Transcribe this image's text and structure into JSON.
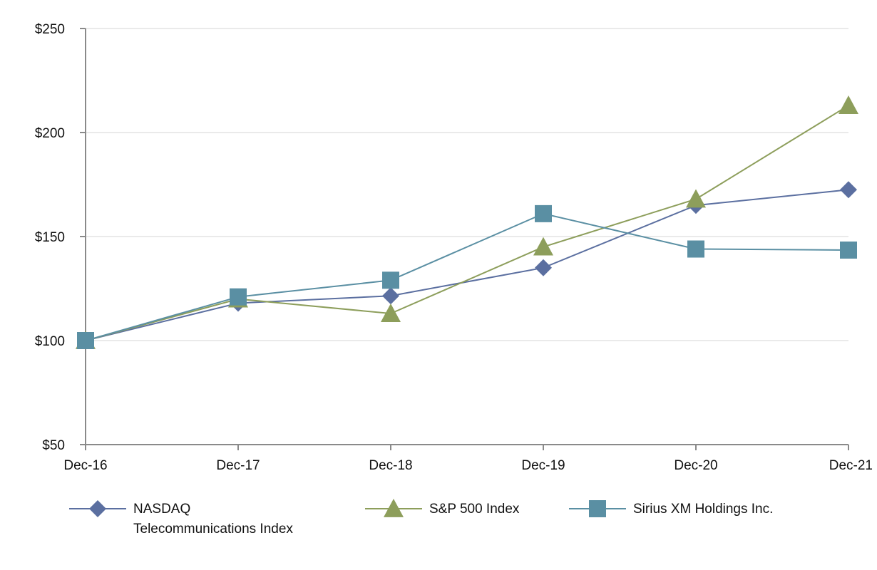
{
  "chart_data": {
    "type": "line",
    "title": "",
    "xlabel": "",
    "ylabel": "",
    "categories": [
      "Dec-16",
      "Dec-17",
      "Dec-18",
      "Dec-19",
      "Dec-20",
      "Dec-21"
    ],
    "ylim": [
      50,
      250
    ],
    "yticks": [
      50,
      100,
      150,
      200,
      250
    ],
    "ytick_labels": [
      "$50",
      "$100",
      "$150",
      "$200",
      "$250"
    ],
    "grid": "horizontal",
    "legend_position": "bottom",
    "series": [
      {
        "name": "NASDAQ Telecommunications Index",
        "name_lines": [
          "NASDAQ",
          "Telecommunications Index"
        ],
        "marker": "diamond",
        "color": "#5b6fa0",
        "values": [
          100,
          118,
          121.5,
          135,
          165,
          172.5
        ]
      },
      {
        "name": "S&P 500 Index",
        "name_lines": [
          "S&P 500 Index"
        ],
        "marker": "triangle",
        "color": "#8d9e5b",
        "values": [
          100,
          120,
          113,
          145,
          168,
          213
        ]
      },
      {
        "name": "Sirius XM Holdings Inc.",
        "name_lines": [
          "Sirius XM Holdings Inc."
        ],
        "marker": "square",
        "color": "#5a8fa3",
        "values": [
          100,
          121,
          129,
          161,
          144,
          143.5
        ]
      }
    ]
  }
}
